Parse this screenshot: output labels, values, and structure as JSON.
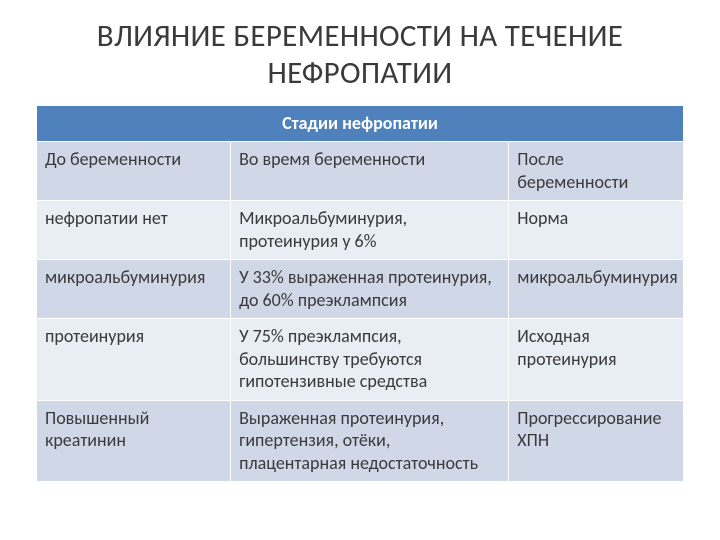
{
  "title": "ВЛИЯНИЕ БЕРЕМЕННОСТИ НА ТЕЧЕНИЕ НЕФРОПАТИИ",
  "table": {
    "colors": {
      "header_bg": "#4f81bd",
      "header_fg": "#ffffff",
      "band_a_bg": "#e9edf4",
      "band_b_bg": "#d0d8e8",
      "text": "#3a3a3a",
      "border": "#ffffff"
    },
    "col_widths_pct": [
      30,
      43,
      27
    ],
    "span_header": "Стадии нефропатии",
    "subheaders": [
      "До беременности",
      "Во время беременности",
      "После беременности"
    ],
    "rows": [
      [
        "нефропатии нет",
        "Микроальбуминурия, протеинурия у 6%",
        "Норма"
      ],
      [
        "микроальбуминурия",
        "У 33% выраженная протеинурия, до 60% преэклампсия",
        "микроальбуминурия"
      ],
      [
        "протеинурия",
        "У 75% преэклампсия, большинству требуются гипотензивные средства",
        "Исходная протеинурия"
      ],
      [
        "Повышенный креатинин",
        "Выраженная протеинурия, гипертензия, отёки, плацентарная недостаточность",
        "Прогрессирование ХПН"
      ]
    ]
  }
}
